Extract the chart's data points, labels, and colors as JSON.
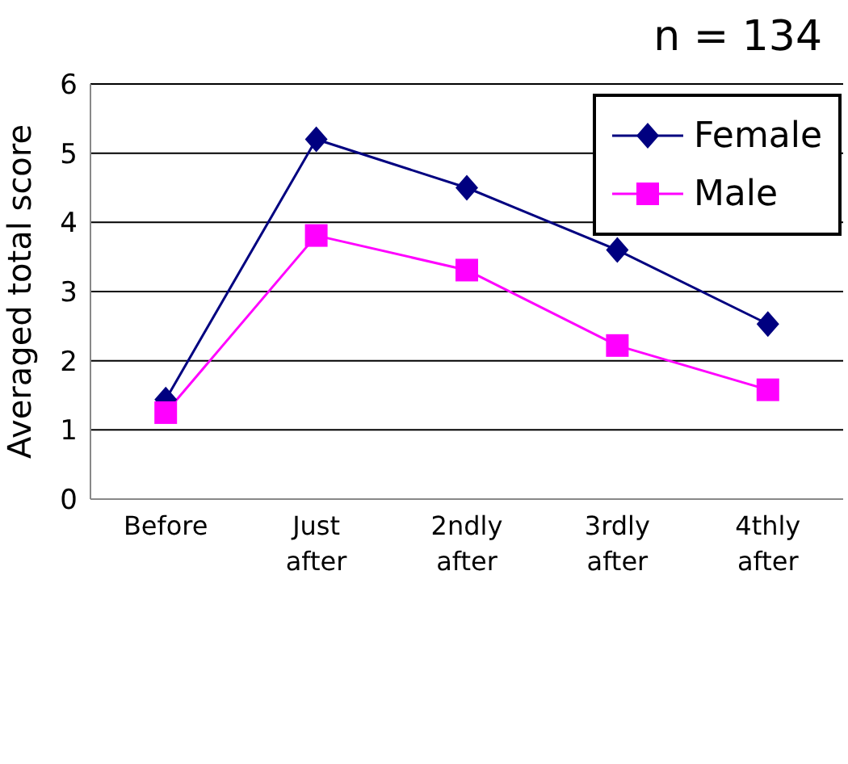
{
  "chart_data": {
    "type": "line",
    "title": "n = 134",
    "ylabel": "Averaged total score",
    "categories": [
      "Before",
      "Just after",
      "2ndly after",
      "3rdly after",
      "4thly after"
    ],
    "series": [
      {
        "name": "Female",
        "color": "#000080",
        "marker": "diamond",
        "values": [
          1.44,
          5.2,
          4.5,
          3.6,
          2.53
        ]
      },
      {
        "name": "Male",
        "color": "#ff00ff",
        "marker": "square",
        "values": [
          1.25,
          3.81,
          3.31,
          2.22,
          1.58
        ]
      }
    ],
    "ylim": [
      0,
      6
    ],
    "yticks": [
      0,
      1,
      2,
      3,
      4,
      5,
      6
    ],
    "grid": "y",
    "legend": "top right"
  }
}
